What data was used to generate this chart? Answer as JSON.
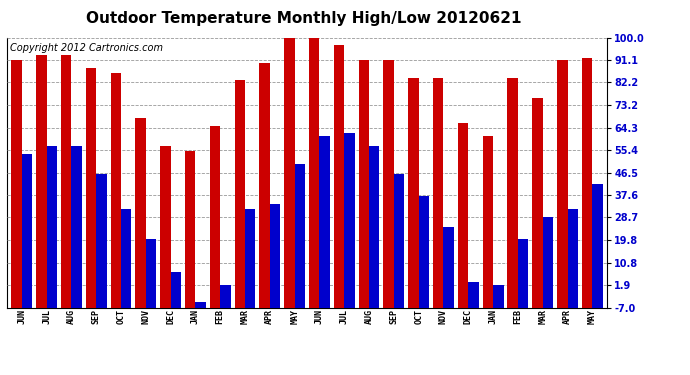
{
  "title": "Outdoor Temperature Monthly High/Low 20120621",
  "copyright": "Copyright 2012 Cartronics.com",
  "months": [
    "JUN",
    "JUL",
    "AUG",
    "SEP",
    "OCT",
    "NOV",
    "DEC",
    "JAN",
    "FEB",
    "MAR",
    "APR",
    "MAY",
    "JUN",
    "JUL",
    "AUG",
    "SEP",
    "OCT",
    "NOV",
    "DEC",
    "JAN",
    "FEB",
    "MAR",
    "APR",
    "MAY"
  ],
  "highs": [
    91.0,
    93.0,
    93.0,
    88.0,
    86.0,
    68.0,
    57.0,
    55.0,
    65.0,
    83.0,
    90.0,
    100.0,
    102.0,
    97.0,
    91.0,
    91.0,
    84.0,
    84.0,
    66.0,
    61.0,
    84.0,
    76.0,
    91.0,
    92.0
  ],
  "lows": [
    54.0,
    57.0,
    57.0,
    46.0,
    32.0,
    20.0,
    7.0,
    -5.0,
    2.0,
    32.0,
    34.0,
    50.0,
    61.0,
    62.0,
    57.0,
    46.0,
    37.0,
    25.0,
    3.0,
    2.0,
    20.0,
    29.0,
    32.0,
    42.0
  ],
  "bar_width": 0.42,
  "high_color": "#cc0000",
  "low_color": "#0000cc",
  "background_color": "#ffffff",
  "grid_color": "#999999",
  "yticks": [
    -7.0,
    1.9,
    10.8,
    19.8,
    28.7,
    37.6,
    46.5,
    55.4,
    64.3,
    73.2,
    82.2,
    91.1,
    100.0
  ],
  "ylim": [
    -7.0,
    100.0
  ],
  "title_fontsize": 11,
  "copyright_fontsize": 7,
  "xlabel_fontsize": 6,
  "ylabel_fontsize": 7
}
